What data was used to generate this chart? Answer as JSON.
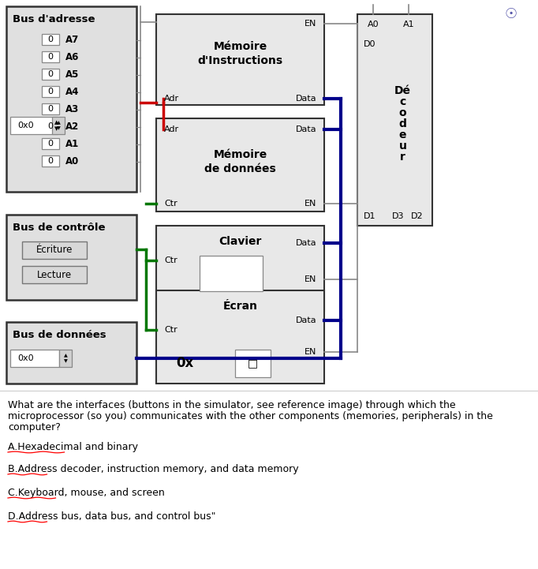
{
  "bg_color": "#ffffff",
  "bus_adresse_label": "Bus d'adresse",
  "bus_controle_label": "Bus de contrôle",
  "bus_donnees_label": "Bus de données",
  "addr_bits": [
    "A7",
    "A6",
    "A5",
    "A4",
    "A3",
    "A2",
    "A1",
    "A0"
  ],
  "mem_instr_label": "Mémoire\nd'Instructions",
  "mem_data_label": "Mémoire\nde données",
  "clavier_label": "Clavier",
  "ecran_label": "Écran",
  "decodeur_label": "Dé\nc\no\nd\ne\nu\nr",
  "ecriture_label": "Écriture",
  "lecture_label": "Lecture",
  "red_color": "#cc0000",
  "green_color": "#007700",
  "dark_blue": "#00008b",
  "gray_line": "#888888",
  "question_text": "What are the interfaces (buttons in the simulator, see reference image) through which the\nmicroprocessor (so you) communicates with the other components (memories, peripherals) in the\ncomputer?",
  "options": [
    "A.Hexadecimal and binary",
    "B.Address decoder, instruction memory, and data memory",
    "C.Keyboard, mouse, and screen",
    "D.Address bus, data bus, and control bus\""
  ]
}
